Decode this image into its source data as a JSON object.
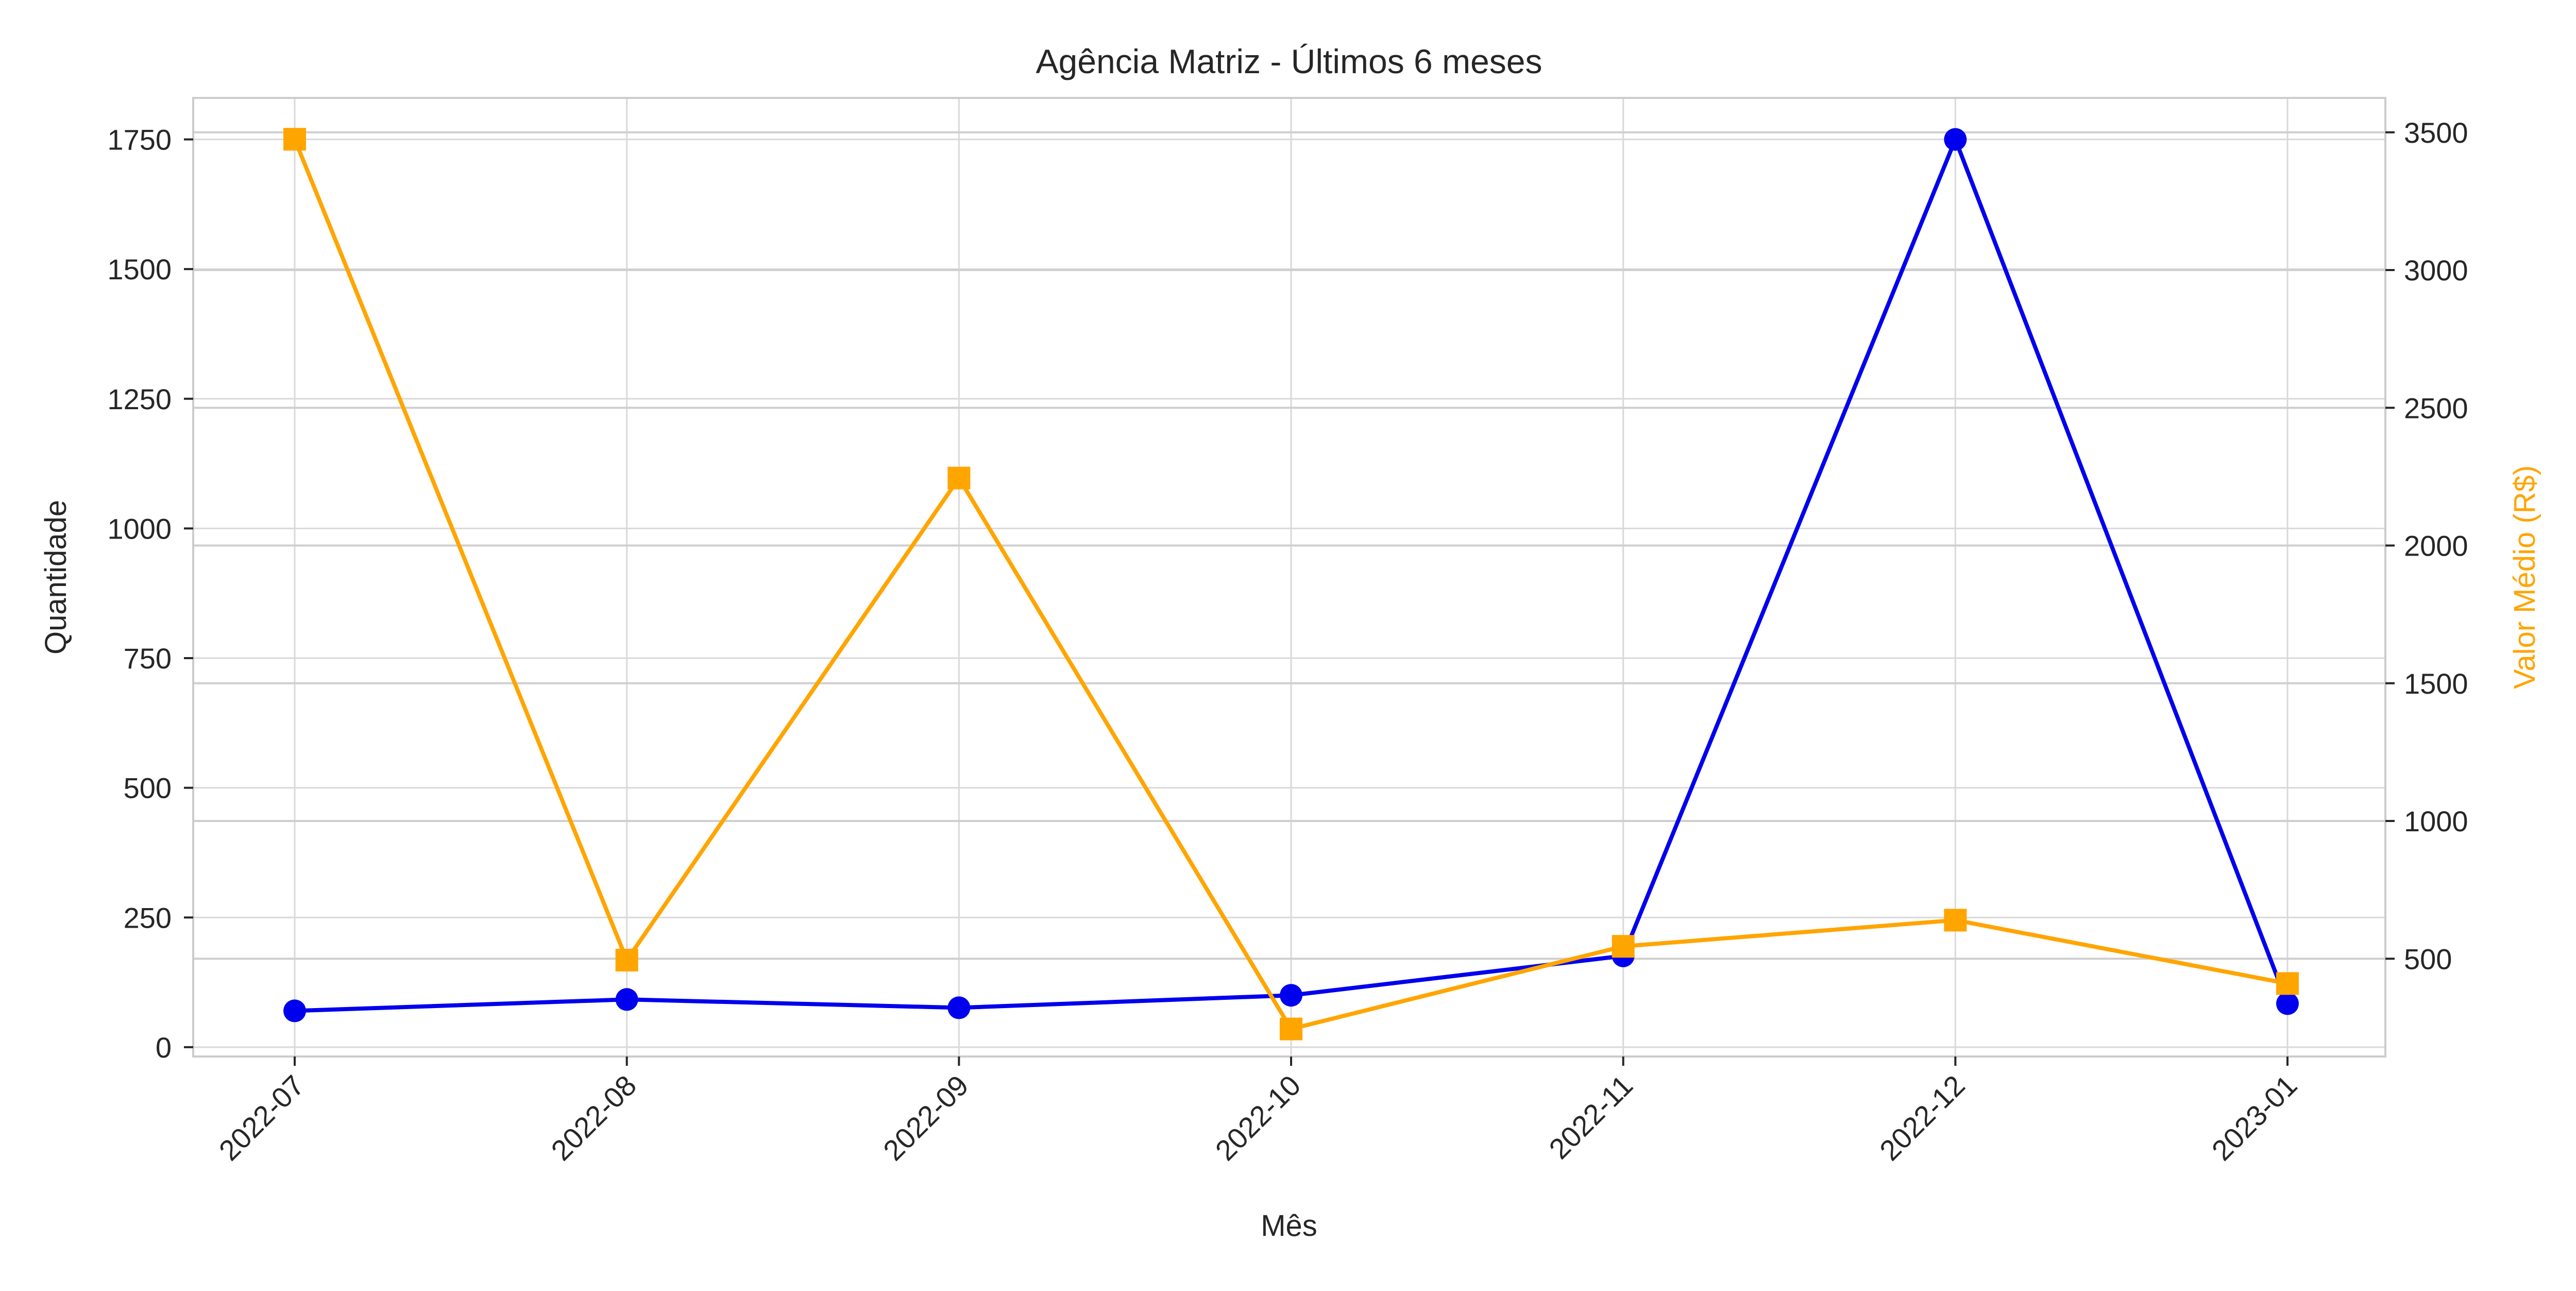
{
  "chart_data": {
    "type": "line",
    "title": "Agência Matriz - Últimos 6 meses",
    "xlabel": "Mês",
    "ylabel_left": "Quantidade",
    "ylabel_right": "Valor Médio (R$)",
    "categories": [
      "2022-07",
      "2022-08",
      "2022-09",
      "2022-10",
      "2022-11",
      "2022-12",
      "2023-01"
    ],
    "left_axis": {
      "ylim": [
        -18,
        1830
      ],
      "ticks": [
        0,
        250,
        500,
        750,
        1000,
        1250,
        1500,
        1750
      ]
    },
    "right_axis": {
      "ylim": [
        145,
        3625
      ],
      "ticks": [
        500,
        1000,
        1500,
        2000,
        2500,
        3000,
        3500
      ]
    },
    "series": [
      {
        "axis": "left",
        "marker": "circle",
        "color": "#0000ee",
        "values": [
          70,
          92,
          76,
          100,
          176,
          1750,
          84
        ]
      },
      {
        "axis": "right",
        "marker": "square",
        "color": "#ffa500",
        "values": [
          3475,
          495,
          2245,
          245,
          545,
          640,
          410
        ]
      }
    ],
    "grid": true,
    "legend": "none"
  },
  "colors": {
    "text": "#262626",
    "right_axis_label": "#ffa500",
    "grid": "#d9d9d9",
    "spine": "#cccccc"
  }
}
